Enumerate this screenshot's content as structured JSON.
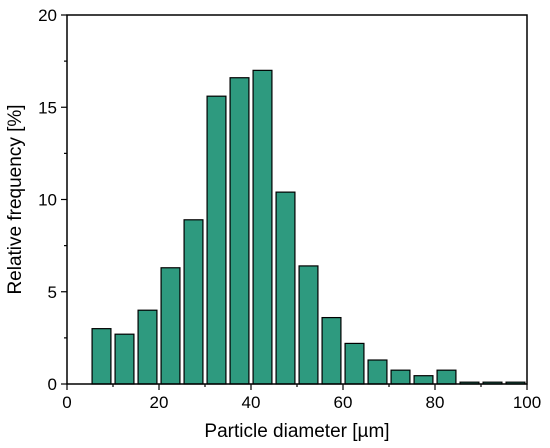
{
  "chart_data": {
    "type": "bar",
    "title": "",
    "xlabel": "Particle diameter [µm]",
    "ylabel": "Relative frequency [%]",
    "xlim": [
      0,
      100
    ],
    "ylim": [
      0,
      20
    ],
    "xticks": [
      0,
      20,
      40,
      60,
      80,
      100
    ],
    "yticks": [
      0,
      5,
      10,
      15,
      20
    ],
    "grid": false,
    "bin_width": 5,
    "bar_color": "#2e9a7f",
    "x": [
      7.5,
      12.5,
      17.5,
      22.5,
      27.5,
      32.5,
      37.5,
      42.5,
      47.5,
      52.5,
      57.5,
      62.5,
      67.5,
      72.5,
      77.5,
      82.5,
      87.5,
      92.5,
      97.5
    ],
    "values": [
      3.0,
      2.7,
      4.0,
      6.3,
      8.9,
      15.6,
      16.6,
      17.0,
      10.4,
      6.4,
      3.6,
      2.2,
      1.3,
      0.75,
      0.45,
      0.75,
      0.1,
      0.1,
      0.1
    ]
  }
}
